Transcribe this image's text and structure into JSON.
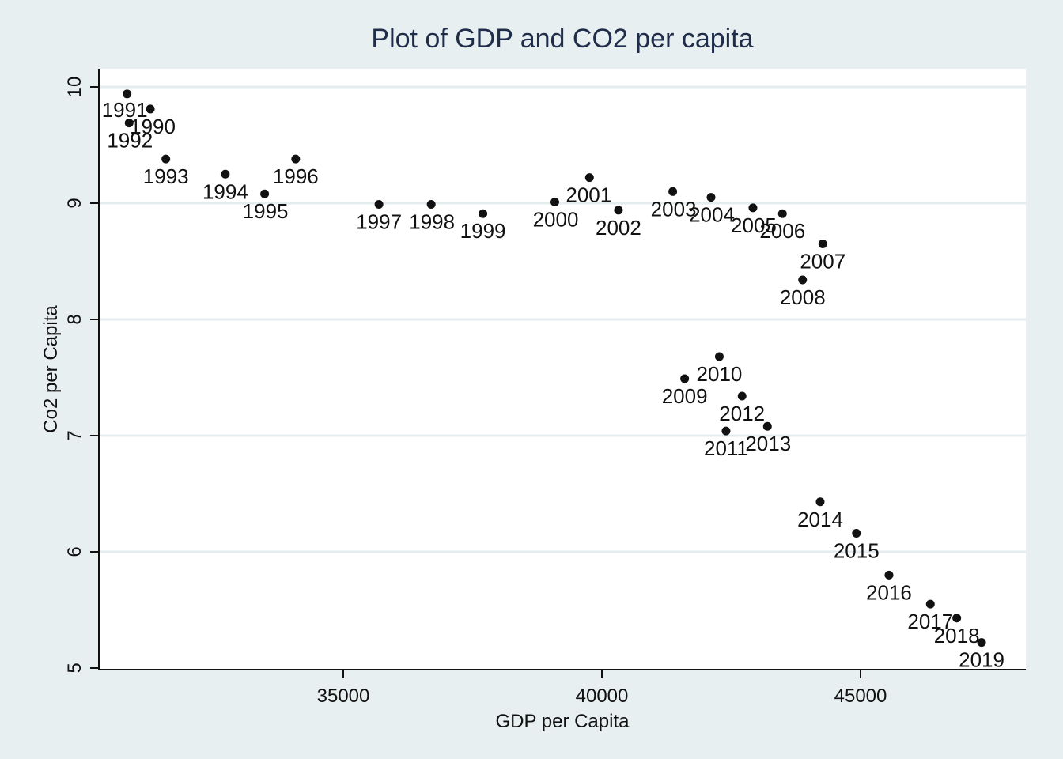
{
  "chart_data": {
    "type": "scatter",
    "title": "Plot of GDP and CO2 per capita",
    "xlabel": "GDP per Capita",
    "ylabel": "Co2 per Capita",
    "xlim": [
      30300,
      48200
    ],
    "ylim": [
      5,
      10.2
    ],
    "xticks": [
      35000,
      40000,
      45000
    ],
    "yticks": [
      5,
      6,
      7,
      8,
      9,
      10
    ],
    "grid": true,
    "legend": "none",
    "colors": {
      "background": "#e8eff0",
      "plot_area": "#ffffff",
      "marker": "#111111",
      "title": "#1f2d4a",
      "grid": "#e4ecee"
    },
    "points": [
      {
        "label": "1990",
        "x": 31270,
        "y": 9.81
      },
      {
        "label": "1991",
        "x": 30820,
        "y": 9.94
      },
      {
        "label": "1992",
        "x": 30860,
        "y": 9.69
      },
      {
        "label": "1993",
        "x": 31570,
        "y": 9.38
      },
      {
        "label": "1994",
        "x": 32720,
        "y": 9.25
      },
      {
        "label": "1995",
        "x": 33480,
        "y": 9.08
      },
      {
        "label": "1996",
        "x": 34080,
        "y": 9.38
      },
      {
        "label": "1997",
        "x": 35690,
        "y": 8.99
      },
      {
        "label": "1998",
        "x": 36700,
        "y": 8.99
      },
      {
        "label": "1999",
        "x": 37700,
        "y": 8.91
      },
      {
        "label": "2000",
        "x": 39090,
        "y": 9.01
      },
      {
        "label": "2001",
        "x": 39760,
        "y": 9.22
      },
      {
        "label": "2002",
        "x": 40320,
        "y": 8.94
      },
      {
        "label": "2003",
        "x": 41370,
        "y": 9.1
      },
      {
        "label": "2004",
        "x": 42110,
        "y": 9.05
      },
      {
        "label": "2005",
        "x": 42920,
        "y": 8.96
      },
      {
        "label": "2006",
        "x": 43490,
        "y": 8.91
      },
      {
        "label": "2007",
        "x": 44270,
        "y": 8.65
      },
      {
        "label": "2008",
        "x": 43880,
        "y": 8.34
      },
      {
        "label": "2009",
        "x": 41600,
        "y": 7.49
      },
      {
        "label": "2010",
        "x": 42270,
        "y": 7.68
      },
      {
        "label": "2011",
        "x": 42400,
        "y": 7.04
      },
      {
        "label": "2012",
        "x": 42710,
        "y": 7.34
      },
      {
        "label": "2013",
        "x": 43200,
        "y": 7.08
      },
      {
        "label": "2014",
        "x": 44220,
        "y": 6.43
      },
      {
        "label": "2015",
        "x": 44920,
        "y": 6.16
      },
      {
        "label": "2016",
        "x": 45550,
        "y": 5.8
      },
      {
        "label": "2017",
        "x": 46350,
        "y": 5.55
      },
      {
        "label": "2018",
        "x": 46860,
        "y": 5.43
      },
      {
        "label": "2019",
        "x": 47340,
        "y": 5.22
      }
    ]
  }
}
